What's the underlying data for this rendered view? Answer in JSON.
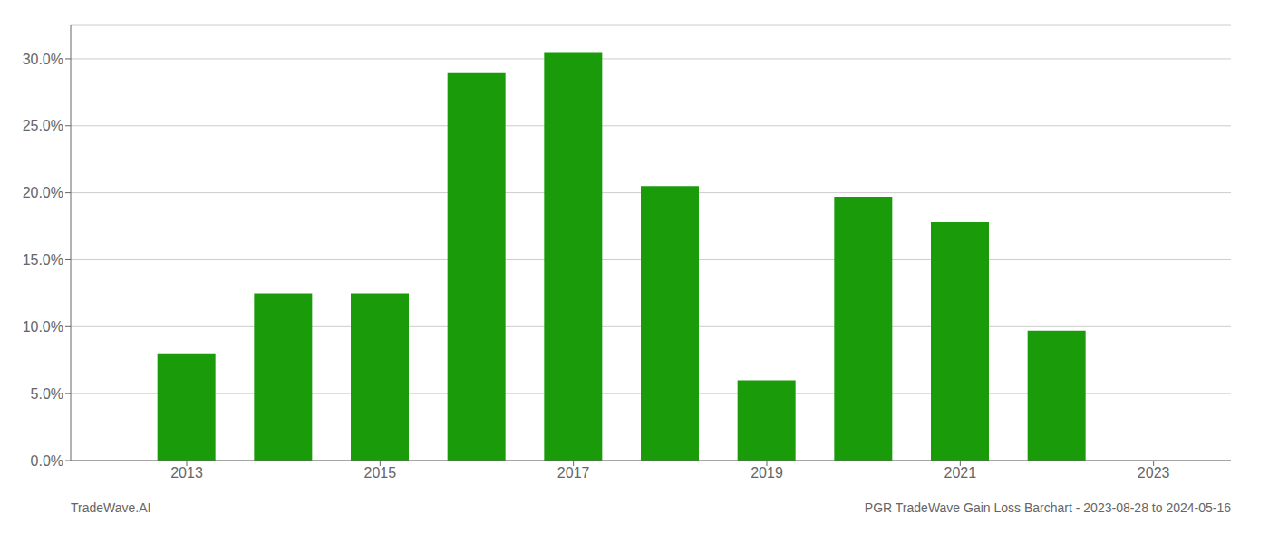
{
  "chart_data": {
    "type": "bar",
    "title": "PGR TradeWave Gain Loss Barchart - 2023-08-28 to 2024-05-16",
    "annotations": [
      "TradeWave.AI"
    ],
    "x": [
      2013,
      2014,
      2015,
      2016,
      2017,
      2018,
      2019,
      2020,
      2021,
      2022
    ],
    "values": [
      0.08,
      0.125,
      0.125,
      0.29,
      0.305,
      0.205,
      0.06,
      0.197,
      0.178,
      0.097
    ],
    "color": "#1a9c0a",
    "xlim": [
      2011.8,
      2023.8
    ],
    "xticks": [
      2013,
      2015,
      2017,
      2019,
      2021,
      2023
    ],
    "ylim": [
      0,
      0.325
    ],
    "yticks": [
      {
        "value": 0.0,
        "label": "0.0%"
      },
      {
        "value": 0.05,
        "label": "5.0%"
      },
      {
        "value": 0.1,
        "label": "10.0%"
      },
      {
        "value": 0.15,
        "label": "15.0%"
      },
      {
        "value": 0.2,
        "label": "20.0%"
      },
      {
        "value": 0.25,
        "label": "25.0%"
      },
      {
        "value": 0.3,
        "label": "30.0%"
      }
    ],
    "grid": true
  }
}
